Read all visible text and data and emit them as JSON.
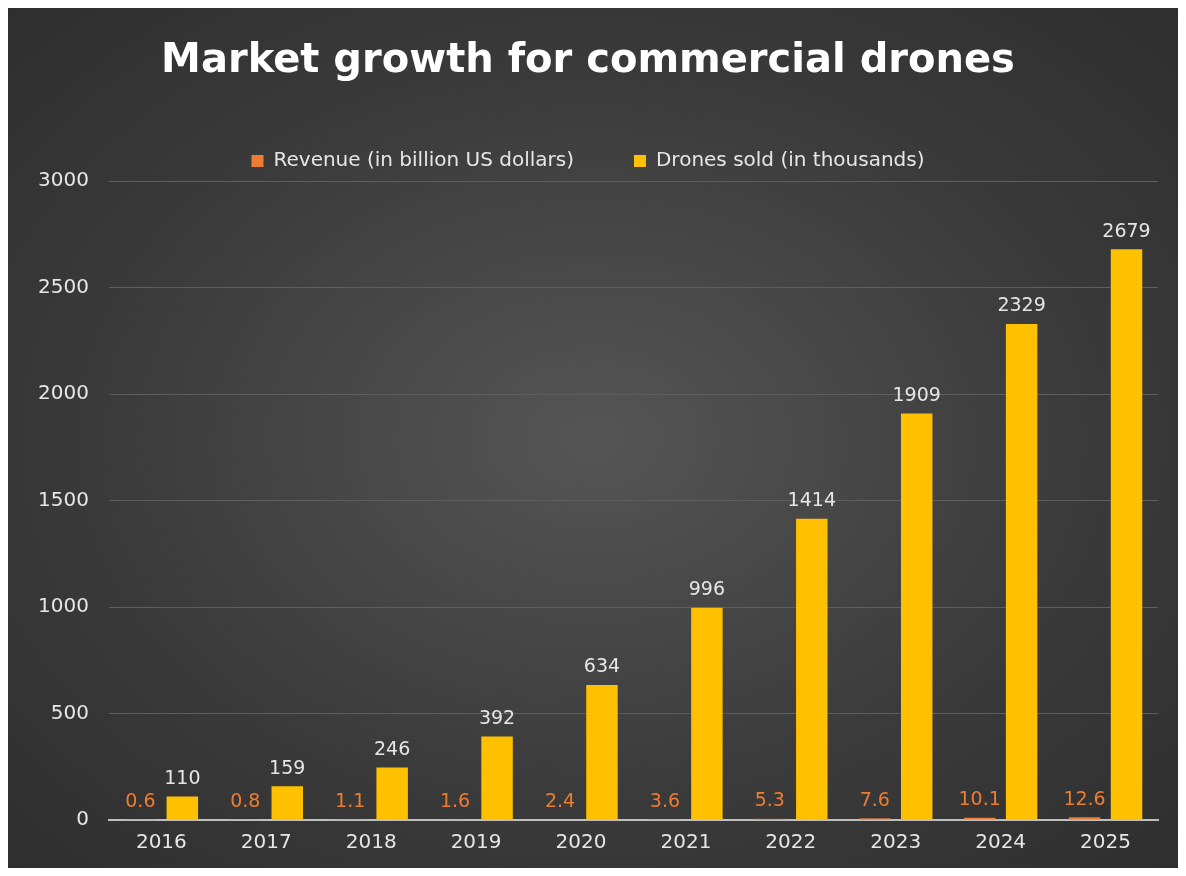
{
  "chart_data": {
    "type": "bar",
    "title": "Market growth for commercial drones",
    "categories": [
      "2016",
      "2017",
      "2018",
      "2019",
      "2020",
      "2021",
      "2022",
      "2023",
      "2024",
      "2025"
    ],
    "series": [
      {
        "name": "Revenue (in billion US dollars)",
        "color": "#ed7d31",
        "values": [
          0.6,
          0.8,
          1.1,
          1.6,
          2.4,
          3.6,
          5.3,
          7.6,
          10.1,
          12.6
        ]
      },
      {
        "name": "Drones sold (in thousands)",
        "color": "#ffc000",
        "values": [
          110,
          159,
          246,
          392,
          634,
          996,
          1414,
          1909,
          2329,
          2679
        ]
      }
    ],
    "ylim": [
      0,
      3000
    ],
    "yticks": [
      0,
      500,
      1000,
      1500,
      2000,
      2500,
      3000
    ],
    "grid": "y",
    "legend": "top",
    "data_labels": true
  }
}
